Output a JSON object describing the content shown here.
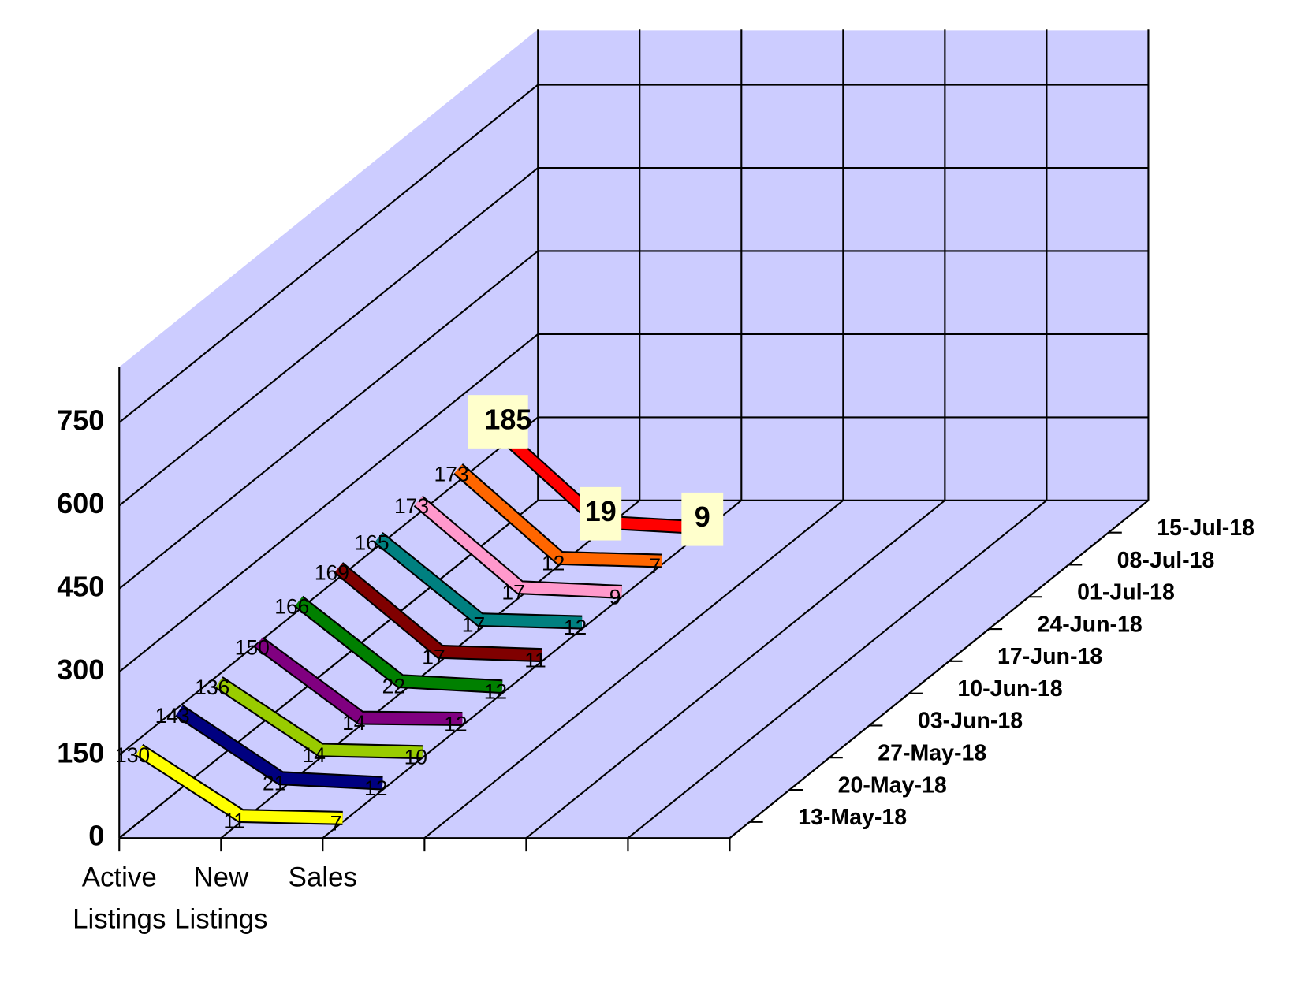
{
  "chart_data": {
    "type": "line3d",
    "categories": [
      "Active Listings",
      "New Listings",
      "Sales",
      null,
      null,
      null
    ],
    "ylim": [
      0,
      850
    ],
    "yticks": [
      0,
      150,
      300,
      450,
      600,
      750
    ],
    "grid": true,
    "series": [
      {
        "name": "13-May-18",
        "color": "#ffff00",
        "values": [
          130,
          11,
          7,
          null,
          null,
          null
        ]
      },
      {
        "name": "20-May-18",
        "color": "#000080",
        "values": [
          143,
          21,
          12,
          null,
          null,
          null
        ]
      },
      {
        "name": "27-May-18",
        "color": "#99cc00",
        "values": [
          136,
          14,
          10,
          null,
          null,
          null
        ]
      },
      {
        "name": "03-Jun-18",
        "color": "#800080",
        "values": [
          150,
          14,
          12,
          null,
          null,
          null
        ]
      },
      {
        "name": "10-Jun-18",
        "color": "#008000",
        "values": [
          166,
          22,
          12,
          null,
          null,
          null
        ]
      },
      {
        "name": "17-Jun-18",
        "color": "#800000",
        "values": [
          169,
          17,
          11,
          null,
          null,
          null
        ]
      },
      {
        "name": "24-Jun-18",
        "color": "#008080",
        "values": [
          165,
          17,
          12,
          null,
          null,
          null
        ]
      },
      {
        "name": "01-Jul-18",
        "color": "#ff99cc",
        "values": [
          173,
          17,
          9,
          null,
          null,
          null
        ]
      },
      {
        "name": "08-Jul-18",
        "color": "#ff6600",
        "values": [
          173,
          12,
          7,
          null,
          null,
          null
        ]
      },
      {
        "name": "15-Jul-18",
        "color": "#ff0000",
        "values": [
          185,
          19,
          9,
          null,
          null,
          null
        ]
      }
    ]
  }
}
